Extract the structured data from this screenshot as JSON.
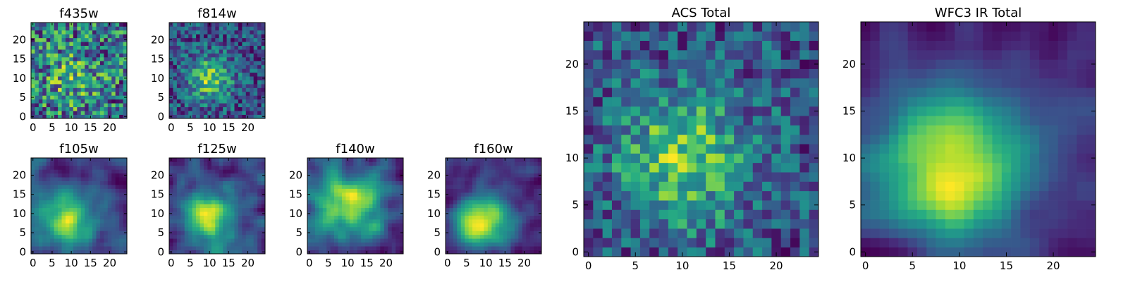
{
  "figure_title": "",
  "chart_data": [
    {
      "id": "f435w",
      "type": "heatmap",
      "title": "f435w",
      "grid_size": 25,
      "xticks": [
        "0",
        "5",
        "10",
        "15",
        "20"
      ],
      "yticks": [
        "0",
        "5",
        "10",
        "15",
        "20"
      ],
      "colormap": "viridis",
      "pattern": "noise",
      "seed": 11,
      "peak": [
        10,
        10
      ],
      "sigma": 6,
      "strength": 0.15,
      "noise": 0.55
    },
    {
      "id": "f814w",
      "type": "heatmap",
      "title": "f814w",
      "grid_size": 25,
      "xticks": [
        "0",
        "5",
        "10",
        "15",
        "20"
      ],
      "yticks": [
        "0",
        "5",
        "10",
        "15",
        "20"
      ],
      "colormap": "viridis",
      "pattern": "noise",
      "seed": 23,
      "peak": [
        10,
        10
      ],
      "sigma": 4,
      "strength": 0.45,
      "noise": 0.45
    },
    {
      "id": "f105w",
      "type": "heatmap",
      "title": "f105w",
      "grid_size": 25,
      "xticks": [
        "0",
        "5",
        "10",
        "15",
        "20"
      ],
      "yticks": [
        "0",
        "5",
        "10",
        "15",
        "20"
      ],
      "colormap": "viridis",
      "pattern": "smooth",
      "seed": 37,
      "peak": [
        9,
        8
      ],
      "sigma": 5,
      "strength": 0.5,
      "noise": 0.3
    },
    {
      "id": "f125w",
      "type": "heatmap",
      "title": "f125w",
      "grid_size": 25,
      "xticks": [
        "0",
        "5",
        "10",
        "15",
        "20"
      ],
      "yticks": [
        "0",
        "5",
        "10",
        "15",
        "20"
      ],
      "colormap": "viridis",
      "pattern": "smooth",
      "seed": 41,
      "peak": [
        10,
        9
      ],
      "sigma": 5,
      "strength": 0.5,
      "noise": 0.3
    },
    {
      "id": "f140w",
      "type": "heatmap",
      "title": "f140w",
      "grid_size": 25,
      "xticks": [
        "0",
        "5",
        "10",
        "15",
        "20"
      ],
      "yticks": [
        "0",
        "5",
        "10",
        "15",
        "20"
      ],
      "colormap": "viridis",
      "pattern": "smooth",
      "seed": 53,
      "peak": [
        11,
        13
      ],
      "sigma": 6,
      "strength": 0.45,
      "noise": 0.35
    },
    {
      "id": "f160w",
      "type": "heatmap",
      "title": "f160w",
      "grid_size": 25,
      "xticks": [
        "0",
        "5",
        "10",
        "15",
        "20"
      ],
      "yticks": [
        "0",
        "5",
        "10",
        "15",
        "20"
      ],
      "colormap": "viridis",
      "pattern": "smooth",
      "seed": 67,
      "peak": [
        9,
        8
      ],
      "sigma": 5,
      "strength": 0.6,
      "noise": 0.25
    },
    {
      "id": "acs_total",
      "type": "heatmap",
      "title": "ACS Total",
      "grid_size": 25,
      "xticks": [
        "0",
        "5",
        "10",
        "15",
        "20"
      ],
      "yticks": [
        "0",
        "5",
        "10",
        "15",
        "20"
      ],
      "colormap": "viridis",
      "pattern": "noise",
      "seed": 79,
      "peak": [
        10,
        10
      ],
      "sigma": 5,
      "strength": 0.4,
      "noise": 0.4
    },
    {
      "id": "wfc3_ir_total",
      "type": "heatmap",
      "title": "WFC3 IR Total",
      "grid_size": 25,
      "xticks": [
        "0",
        "5",
        "10",
        "15",
        "20"
      ],
      "yticks": [
        "0",
        "5",
        "10",
        "15",
        "20"
      ],
      "colormap": "viridis",
      "pattern": "smooth",
      "seed": 97,
      "peak": [
        9,
        9
      ],
      "sigma": 6,
      "strength": 0.6,
      "noise": 0.25
    }
  ]
}
